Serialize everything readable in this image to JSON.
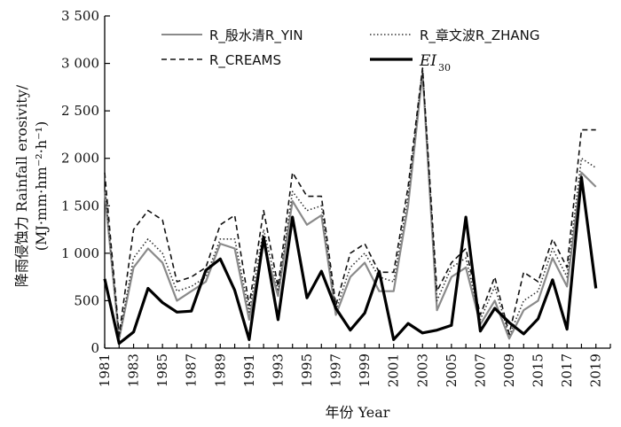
{
  "chart_data": {
    "type": "line",
    "xlabel": "年份 Year",
    "ylabel_line1": "降雨侵蚀力 Rainfall erosivity/",
    "ylabel_line2": "(MJ·mm·hm⁻²·h⁻¹)",
    "ylim": [
      0,
      3500
    ],
    "yticks": [
      0,
      500,
      1000,
      1500,
      2000,
      2500,
      3000,
      3500
    ],
    "ytick_labels": [
      "0",
      "500",
      "1 000",
      "1 500",
      "2 000",
      "2 500",
      "3 000",
      "3 500"
    ],
    "xlim": [
      1981,
      2020
    ],
    "xtick_labels": [
      "1981",
      "1983",
      "1985",
      "1987",
      "1989",
      "1991",
      "1993",
      "1995",
      "1997",
      "1999",
      "2001",
      "2003",
      "2005",
      "2007",
      "2009",
      "2015",
      "2017",
      "2019"
    ],
    "categories": [
      "1981",
      "1982",
      "1983",
      "1984",
      "1985",
      "1986",
      "1987",
      "1988",
      "1989",
      "1990",
      "1991",
      "1992",
      "1993",
      "1994",
      "1995",
      "1996",
      "1997",
      "1998",
      "1999",
      "2000",
      "2001",
      "2002",
      "2003",
      "2004",
      "2005",
      "2006",
      "2007",
      "2008",
      "2009",
      "2010",
      "2015",
      "2016",
      "2017",
      "2018",
      "2019",
      "2020"
    ],
    "grid": false,
    "legend_position": "top",
    "series": [
      {
        "name": "R_殷水清R_YIN",
        "color": "#8a8a8a",
        "style": "solid-gray",
        "values": [
          1650,
          100,
          850,
          1050,
          900,
          500,
          600,
          700,
          1100,
          1050,
          300,
          1100,
          550,
          1550,
          1300,
          1400,
          350,
          750,
          900,
          600,
          600,
          1500,
          2900,
          400,
          750,
          850,
          250,
          500,
          100,
          400,
          500,
          950,
          650,
          1850,
          1700,
          null
        ]
      },
      {
        "name": "R_章文波R_ZHANG",
        "color": "#333333",
        "style": "dotted",
        "values": [
          1700,
          110,
          950,
          1150,
          1000,
          600,
          650,
          750,
          1150,
          1150,
          380,
          1250,
          600,
          1650,
          1450,
          1500,
          400,
          850,
          1000,
          750,
          700,
          1600,
          2950,
          500,
          850,
          950,
          300,
          650,
          130,
          500,
          600,
          1050,
          750,
          2000,
          1900,
          null
        ]
      },
      {
        "name": "R_CREAMS",
        "color": "#111111",
        "style": "dashed",
        "values": [
          1850,
          140,
          1250,
          1450,
          1350,
          700,
          750,
          850,
          1300,
          1400,
          450,
          1450,
          650,
          1850,
          1600,
          1600,
          450,
          1000,
          1100,
          800,
          800,
          1700,
          2950,
          600,
          900,
          1050,
          350,
          750,
          150,
          800,
          700,
          1150,
          850,
          2300,
          2300,
          null
        ]
      },
      {
        "name": "EI",
        "name_sub": "30",
        "color": "#000000",
        "style": "thick",
        "values": [
          730,
          50,
          170,
          630,
          480,
          380,
          390,
          820,
          940,
          610,
          90,
          1170,
          300,
          1380,
          530,
          810,
          420,
          190,
          370,
          810,
          90,
          260,
          160,
          190,
          240,
          1380,
          180,
          420,
          270,
          150,
          310,
          720,
          200,
          1800,
          630,
          null
        ]
      }
    ]
  }
}
